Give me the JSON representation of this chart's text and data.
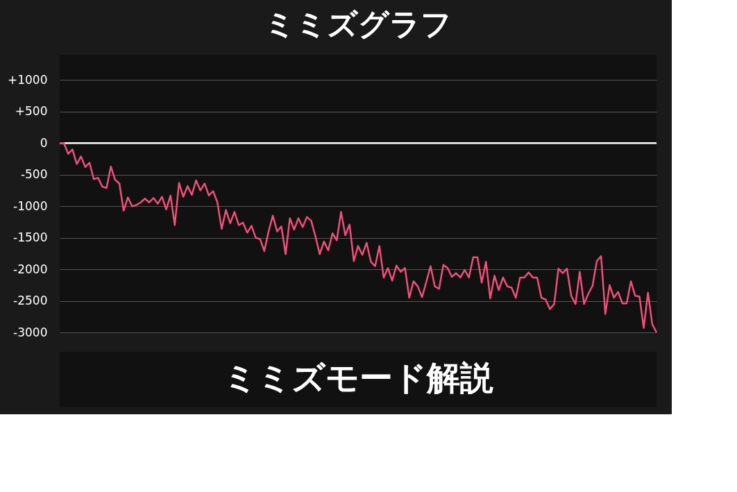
{
  "chart_data": {
    "type": "line",
    "title": "ミミズグラフ",
    "annotations": [
      "ミミズモード解説"
    ],
    "categories": [
      null,
      null,
      null,
      null,
      null,
      null,
      null,
      null,
      null,
      null,
      null,
      null,
      null,
      null,
      null,
      null,
      null,
      null,
      null,
      null,
      null,
      null,
      null,
      null,
      null,
      null,
      null,
      null,
      null,
      null,
      null,
      null,
      null,
      null,
      null,
      null,
      null,
      null,
      null,
      null,
      null,
      null,
      null,
      null,
      null,
      null,
      null,
      null,
      null,
      null,
      null,
      null,
      null,
      null,
      null,
      null,
      null,
      null,
      null,
      null,
      null,
      null,
      null,
      null,
      null,
      null,
      null,
      null,
      null,
      null,
      null,
      null,
      null,
      null,
      null,
      null,
      null,
      null,
      null,
      null,
      null,
      null,
      null,
      null,
      null,
      null,
      null,
      null,
      null,
      null,
      null,
      null,
      null,
      null,
      null,
      null,
      null,
      null,
      null,
      null,
      null,
      null,
      null,
      null,
      null,
      null,
      null,
      null,
      null,
      null,
      null,
      null,
      null,
      null,
      null,
      null,
      null,
      null,
      null,
      null,
      null,
      null,
      null,
      null,
      null,
      null,
      null,
      null,
      null,
      null,
      null,
      null,
      null,
      null,
      null,
      null,
      null,
      null,
      null,
      null,
      null
    ],
    "series": [
      {
        "color": "#f0507a",
        "values": [
          0,
          0,
          -170,
          -100,
          -330,
          -210,
          -380,
          -310,
          -570,
          -550,
          -690,
          -710,
          -370,
          -580,
          -640,
          -1070,
          -860,
          -1000,
          -980,
          -940,
          -880,
          -940,
          -870,
          -960,
          -850,
          -1050,
          -830,
          -1300,
          -630,
          -850,
          -680,
          -820,
          -590,
          -750,
          -640,
          -830,
          -760,
          -940,
          -1360,
          -1060,
          -1270,
          -1090,
          -1300,
          -1260,
          -1420,
          -1310,
          -1500,
          -1520,
          -1710,
          -1400,
          -1150,
          -1400,
          -1320,
          -1760,
          -1190,
          -1370,
          -1190,
          -1330,
          -1170,
          -1230,
          -1480,
          -1760,
          -1560,
          -1700,
          -1430,
          -1540,
          -1090,
          -1460,
          -1290,
          -1870,
          -1630,
          -1770,
          -1580,
          -1880,
          -1950,
          -1630,
          -2130,
          -1980,
          -2180,
          -1940,
          -2040,
          -1980,
          -2450,
          -2190,
          -2270,
          -2440,
          -2200,
          -1950,
          -2270,
          -2310,
          -1930,
          -1980,
          -2120,
          -2060,
          -2130,
          -2010,
          -2130,
          -1810,
          -1810,
          -2210,
          -1880,
          -2460,
          -2100,
          -2330,
          -2130,
          -2270,
          -2290,
          -2450,
          -2130,
          -2130,
          -2050,
          -2130,
          -2130,
          -2450,
          -2480,
          -2630,
          -2550,
          -1990,
          -2060,
          -1990,
          -2420,
          -2550,
          -2040,
          -2550,
          -2390,
          -2260,
          -1870,
          -1790,
          -2710,
          -2250,
          -2450,
          -2360,
          -2540,
          -2540,
          -2190,
          -2420,
          -2430,
          -2930,
          -2370,
          -2870,
          -3000
        ]
      }
    ],
    "ylim": [
      -3000,
      1400
    ],
    "yticks": [
      {
        "value": 1000,
        "label": "+1000"
      },
      {
        "value": 500,
        "label": "+500"
      },
      0,
      -500,
      -1000,
      -1500,
      -2000,
      -2500,
      -3000
    ],
    "ref_lines": [
      {
        "axis": "y",
        "value": 0,
        "color": "#ffffff"
      }
    ],
    "grid": "y",
    "tick_labels": "y",
    "marker": "none",
    "line_style": "solid"
  }
}
